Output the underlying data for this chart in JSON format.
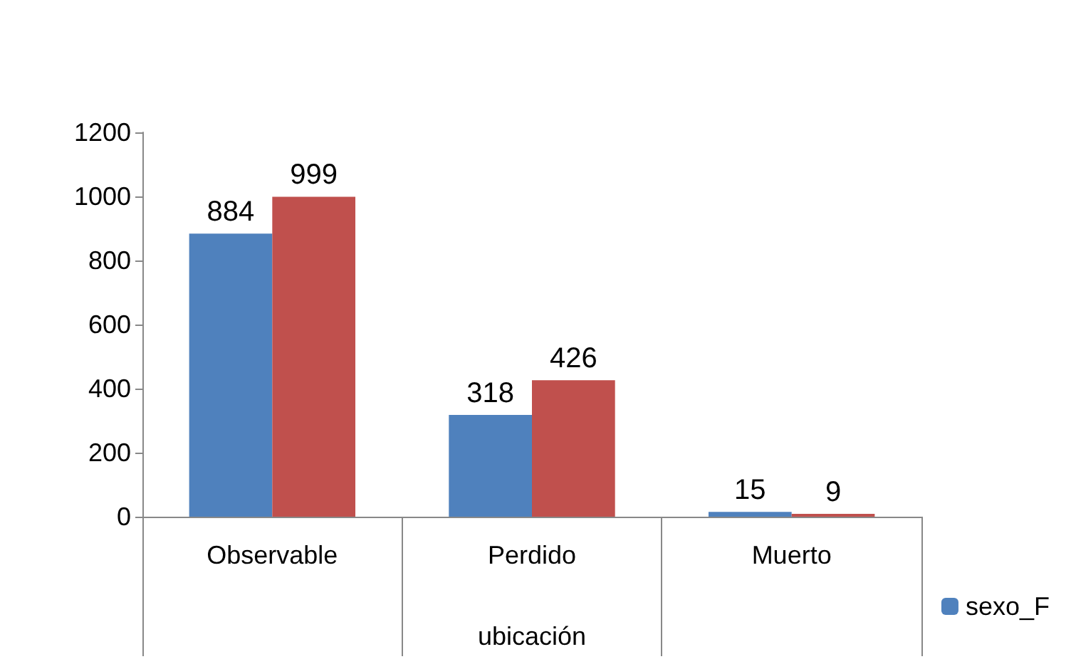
{
  "chart_data": {
    "type": "bar",
    "xlabel": "ubicación",
    "categories": [
      "Observable",
      "Perdido",
      "Muerto"
    ],
    "series": [
      {
        "name": "sexo_F",
        "color": "#4f81bd",
        "values": [
          884,
          318,
          15
        ]
      },
      {
        "color": "#c0504d",
        "values": [
          999,
          426,
          9
        ]
      }
    ],
    "ylim": [
      0,
      1200
    ],
    "yticks": [
      0,
      200,
      400,
      600,
      800,
      1000,
      1200
    ],
    "grid": false,
    "legend": "bottom right",
    "data_labels": true
  }
}
